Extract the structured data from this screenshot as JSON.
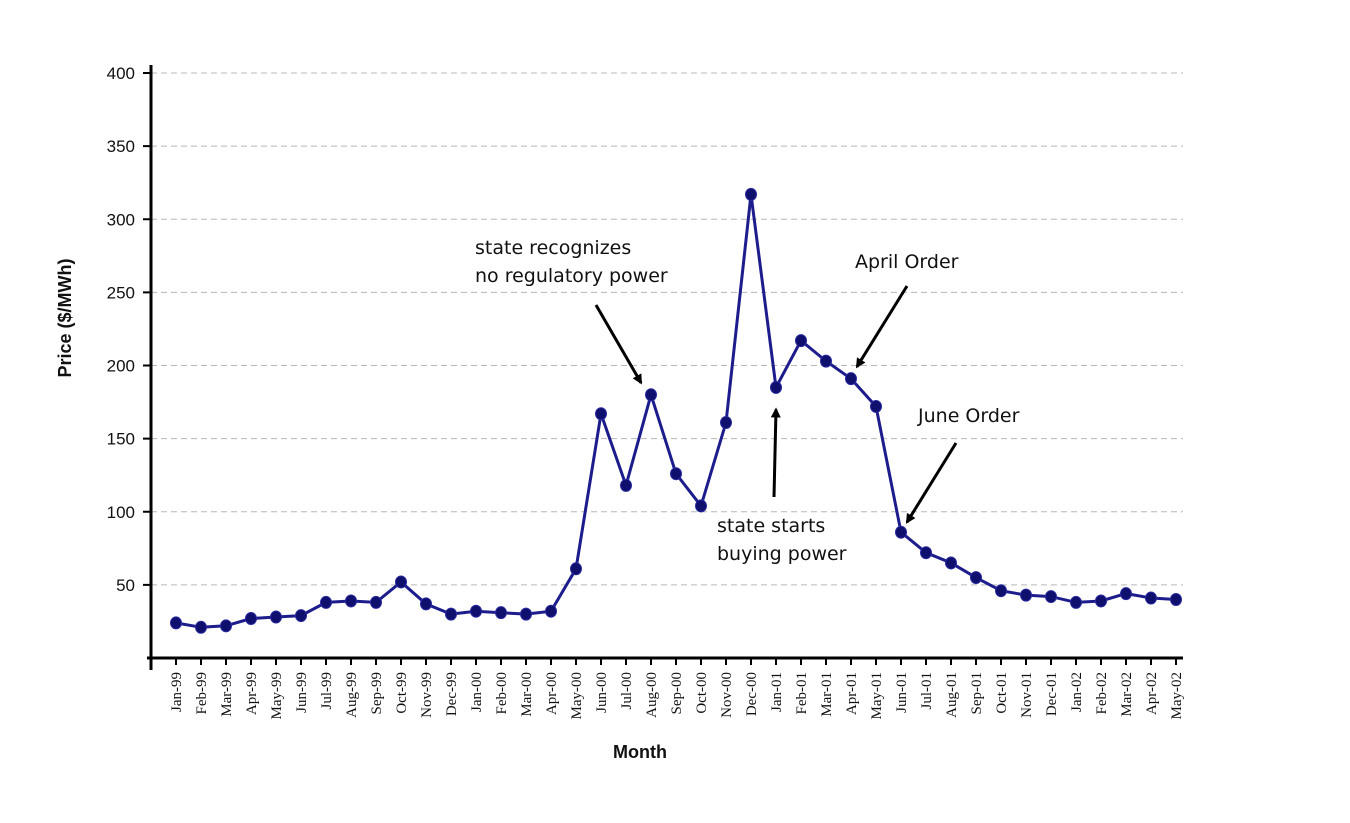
{
  "chart_data": {
    "type": "line",
    "title": "",
    "xlabel": "Month",
    "ylabel": "Price ($/MWh)",
    "ylim": [
      0,
      400
    ],
    "yticks": [
      50,
      100,
      150,
      200,
      250,
      300,
      350,
      400
    ],
    "grid": true,
    "categories": [
      "Jan-99",
      "Feb-99",
      "Mar-99",
      "Apr-99",
      "May-99",
      "Jun-99",
      "Jul-99",
      "Aug-99",
      "Sep-99",
      "Oct-99",
      "Nov-99",
      "Dec-99",
      "Jan-00",
      "Feb-00",
      "Mar-00",
      "Apr-00",
      "May-00",
      "Jun-00",
      "Jul-00",
      "Aug-00",
      "Sep-00",
      "Oct-00",
      "Nov-00",
      "Dec-00",
      "Jan-01",
      "Feb-01",
      "Mar-01",
      "Apr-01",
      "May-01",
      "Jun-01",
      "Jul-01",
      "Aug-01",
      "Sep-01",
      "Oct-01",
      "Nov-01",
      "Dec-01",
      "Jan-02",
      "Feb-02",
      "Mar-02",
      "Apr-02",
      "May-02"
    ],
    "values": [
      24,
      21,
      22,
      27,
      28,
      29,
      38,
      39,
      38,
      52,
      37,
      30,
      32,
      31,
      30,
      32,
      61,
      167,
      118,
      180,
      126,
      104,
      161,
      317,
      185,
      217,
      203,
      191,
      172,
      86,
      72,
      65,
      55,
      46,
      43,
      42,
      38,
      39,
      44,
      41,
      40
    ],
    "series_color": "#1c1c8c",
    "annotations": [
      {
        "lines": [
          "state recognizes",
          "no regulatory power"
        ],
        "points_to": "Aug-00"
      },
      {
        "lines": [
          "state starts",
          "buying power"
        ],
        "points_to": "Jan-01"
      },
      {
        "lines": [
          "April Order"
        ],
        "points_to": "Apr-01"
      },
      {
        "lines": [
          "June Order"
        ],
        "points_to": "Jun-01"
      }
    ]
  }
}
